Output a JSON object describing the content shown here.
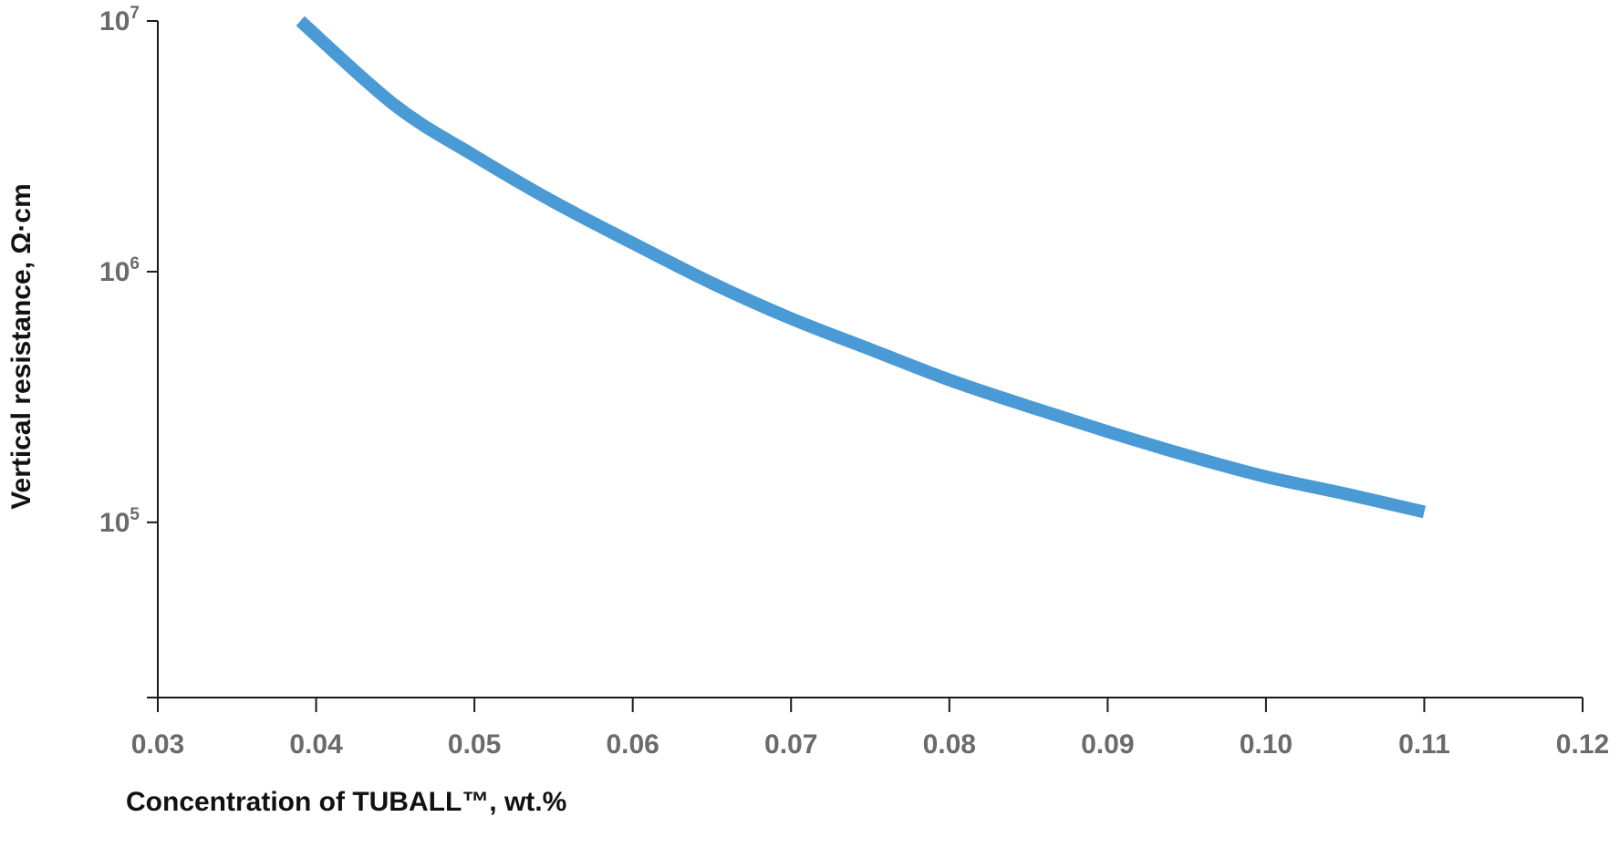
{
  "chart_data": {
    "type": "line",
    "xlabel": "Concentration of TUBALL™, wt.%",
    "ylabel": "Vertical resistance, Ω·cm",
    "xscale": "linear",
    "yscale": "log",
    "xlim": [
      0.03,
      0.12
    ],
    "ylim": [
      20000,
      10000000
    ],
    "grid": false,
    "x_ticks": [
      "0.03",
      "0.04",
      "0.05",
      "0.06",
      "0.07",
      "0.08",
      "0.09",
      "0.10",
      "0.11",
      "0.12"
    ],
    "x_tick_values": [
      0.03,
      0.04,
      0.05,
      0.06,
      0.07,
      0.08,
      0.09,
      0.1,
      0.11,
      0.12
    ],
    "y_ticks": [
      {
        "base": "10",
        "exp": "7",
        "value": 10000000
      },
      {
        "base": "10",
        "exp": "6",
        "value": 1000000
      },
      {
        "base": "10",
        "exp": "5",
        "value": 100000
      }
    ],
    "series": [
      {
        "color": "#4a9ad6",
        "x": [
          0.039,
          0.045,
          0.05,
          0.055,
          0.06,
          0.065,
          0.07,
          0.075,
          0.08,
          0.085,
          0.09,
          0.095,
          0.1,
          0.105,
          0.11
        ],
        "y": [
          10000000,
          4600000,
          2900000,
          1900000,
          1300000,
          900000,
          650000,
          490000,
          370000,
          290000,
          230000,
          185000,
          152000,
          130000,
          110000
        ]
      }
    ]
  }
}
